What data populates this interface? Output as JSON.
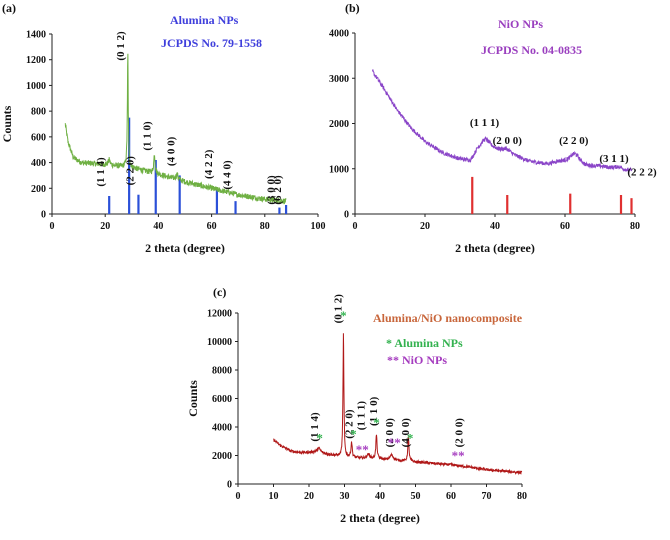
{
  "chart_data": [
    {
      "panel": "(a)",
      "type": "line",
      "xlabel": "2 theta (degree)",
      "ylabel": "Counts",
      "xlim": [
        0,
        100
      ],
      "ylim": [
        0,
        1400
      ],
      "xticks": [
        0,
        20,
        40,
        60,
        80,
        100
      ],
      "yticks": [
        0,
        200,
        400,
        600,
        800,
        1000,
        1200,
        1400
      ],
      "legend": [
        "Alumina NPs",
        "JCPDS No. 79-1558"
      ],
      "legend_color": "#3f3fdc",
      "series_color": "#6fb043",
      "ref_color": "#2b50d8",
      "pattern": {
        "x_start": 5,
        "x_end": 88,
        "baseline": [
          [
            5,
            700
          ],
          [
            6,
            560
          ],
          [
            8,
            440
          ],
          [
            11,
            400
          ],
          [
            20,
            385
          ],
          [
            30,
            360
          ],
          [
            40,
            310
          ],
          [
            50,
            250
          ],
          [
            60,
            200
          ],
          [
            70,
            150
          ],
          [
            80,
            115
          ],
          [
            88,
            100
          ]
        ],
        "peaks": [
          [
            28.5,
            880,
            0.2
          ],
          [
            38.5,
            150,
            0.3
          ],
          [
            21.5,
            40,
            0.4
          ],
          [
            47,
            40,
            0.5
          ]
        ],
        "noise": 22
      },
      "reference_lines": [
        [
          21.5,
          140
        ],
        [
          29,
          750
        ],
        [
          32.5,
          150
        ],
        [
          39,
          420
        ],
        [
          48,
          300
        ],
        [
          62,
          200
        ],
        [
          69,
          100
        ],
        [
          85.5,
          50
        ],
        [
          88,
          70
        ]
      ],
      "peak_labels": [
        {
          "text": "(1 1 4)",
          "x": 21.5
        },
        {
          "text": "(0 1 2)",
          "x": 29
        },
        {
          "text": "(2 2 0)",
          "x": 32.5
        },
        {
          "text": "(1 1 0)",
          "x": 39
        },
        {
          "text": "(4 0 0)",
          "x": 48
        },
        {
          "text": "(4 2 2)",
          "x": 62
        },
        {
          "text": "(4 4 0)",
          "x": 69
        },
        {
          "text": "(3 0 0)",
          "x": 85.5
        },
        {
          "text": "(6 2 0)",
          "x": 88
        }
      ]
    },
    {
      "panel": "(b)",
      "type": "line",
      "xlabel": "2 theta (degree)",
      "ylabel": "",
      "xlim": [
        0,
        80
      ],
      "ylim": [
        0,
        4000
      ],
      "xticks": [
        0,
        20,
        40,
        60,
        80
      ],
      "yticks": [
        0,
        1000,
        2000,
        3000,
        4000
      ],
      "legend": [
        "NiO NPs",
        "JCPDS No. 04-0835"
      ],
      "legend_color": "#9a3fbf",
      "series_color": "#8a45c8",
      "ref_color": "#e03030",
      "pattern": {
        "x_start": 5,
        "x_end": 79,
        "baseline": [
          [
            5,
            3150
          ],
          [
            8,
            2800
          ],
          [
            12,
            2300
          ],
          [
            16,
            1900
          ],
          [
            20,
            1600
          ],
          [
            25,
            1350
          ],
          [
            30,
            1200
          ],
          [
            33,
            1150
          ],
          [
            35,
            1350
          ],
          [
            40,
            1380
          ],
          [
            45,
            1280
          ],
          [
            50,
            1150
          ],
          [
            55,
            1100
          ],
          [
            58,
            1150
          ],
          [
            62,
            1150
          ],
          [
            66,
            1050
          ],
          [
            70,
            1050
          ],
          [
            75,
            980
          ],
          [
            79,
            920
          ]
        ],
        "peaks": [
          [
            37.2,
            280,
            1.8
          ],
          [
            43.3,
            100,
            1.6
          ],
          [
            62.9,
            200,
            1.5
          ],
          [
            75.4,
            60,
            1.5
          ],
          [
            79.4,
            40,
            1.5
          ]
        ],
        "noise": 45
      },
      "reference_lines": [
        [
          33.5,
          820
        ],
        [
          43.5,
          420
        ],
        [
          61.5,
          450
        ],
        [
          76,
          420
        ],
        [
          79,
          350
        ]
      ],
      "peak_labels": [
        {
          "text": "(1 1 1)",
          "x": 37,
          "y": 1950
        },
        {
          "text": "(2 0 0)",
          "x": 43.5,
          "y": 1550
        },
        {
          "text": "(2 2 0)",
          "x": 62.5,
          "y": 1550
        },
        {
          "text": "(3 1 1)",
          "x": 74,
          "y": 1150
        },
        {
          "text": "(2 2 2)",
          "x": 82,
          "y": 850
        }
      ]
    },
    {
      "panel": "(c)",
      "type": "line",
      "xlabel": "2 theta (degree)",
      "ylabel": "Counts",
      "xlim": [
        0,
        80
      ],
      "ylim": [
        0,
        12000
      ],
      "xticks": [
        0,
        10,
        20,
        30,
        40,
        50,
        60,
        70,
        80
      ],
      "yticks": [
        0,
        2000,
        4000,
        6000,
        8000,
        10000,
        12000
      ],
      "title": "Alumina/NiO nanocomposite",
      "title_color": "#c8663b",
      "legend": [
        {
          "text": "* Alumina NPs",
          "color": "#33b24f"
        },
        {
          "text": "** NiO NPs",
          "color": "#a53cbf"
        }
      ],
      "series_color": "#b01818",
      "pattern": {
        "x_start": 10,
        "x_end": 80,
        "baseline": [
          [
            10,
            3100
          ],
          [
            12,
            2700
          ],
          [
            15,
            2300
          ],
          [
            18,
            2200
          ],
          [
            22,
            2250
          ],
          [
            25,
            2100
          ],
          [
            30,
            1900
          ],
          [
            35,
            1800
          ],
          [
            40,
            1750
          ],
          [
            45,
            1650
          ],
          [
            50,
            1550
          ],
          [
            55,
            1450
          ],
          [
            60,
            1350
          ],
          [
            65,
            1200
          ],
          [
            70,
            1000
          ],
          [
            75,
            900
          ],
          [
            80,
            800
          ]
        ],
        "peaks": [
          [
            29.7,
            8800,
            0.15
          ],
          [
            32.0,
            1100,
            0.2
          ],
          [
            39.0,
            1700,
            0.2
          ],
          [
            48.0,
            1700,
            0.2
          ],
          [
            22.8,
            300,
            0.5
          ],
          [
            43.3,
            350,
            0.5
          ],
          [
            36.7,
            300,
            0.5
          ]
        ],
        "noise": 90
      },
      "markers": [
        {
          "text": "*",
          "x": 29.7,
          "y": 11500,
          "color": "#33b24f"
        },
        {
          "text": "*",
          "x": 23,
          "y": 2900,
          "color": "#33b24f"
        },
        {
          "text": "*",
          "x": 32.5,
          "y": 3200,
          "color": "#33b24f"
        },
        {
          "text": "**",
          "x": 35,
          "y": 2100,
          "color": "#a53cbf"
        },
        {
          "text": "*",
          "x": 39,
          "y": 4000,
          "color": "#33b24f"
        },
        {
          "text": "**",
          "x": 44,
          "y": 2600,
          "color": "#a53cbf"
        },
        {
          "text": "*",
          "x": 48.5,
          "y": 2900,
          "color": "#33b24f"
        },
        {
          "text": "**",
          "x": 62,
          "y": 1700,
          "color": "#a53cbf"
        }
      ],
      "peak_labels": [
        {
          "text": "(0 1 2)",
          "x": 29.2,
          "y": 12300
        },
        {
          "text": "(1 1 4)",
          "x": 22.5,
          "y": 4000
        },
        {
          "text": "(2 2 0)",
          "x": 32.2,
          "y": 4200
        },
        {
          "text": "(1 1 1)",
          "x": 35.7,
          "y": 4800
        },
        {
          "text": "(1 1 0)",
          "x": 39.2,
          "y": 5100
        },
        {
          "text": "(2 0 0)",
          "x": 43.7,
          "y": 3600
        },
        {
          "text": "(4 0 0)",
          "x": 48.2,
          "y": 3600
        },
        {
          "text": "(2 0 0)",
          "x": 63.2,
          "y": 3600
        }
      ]
    }
  ]
}
